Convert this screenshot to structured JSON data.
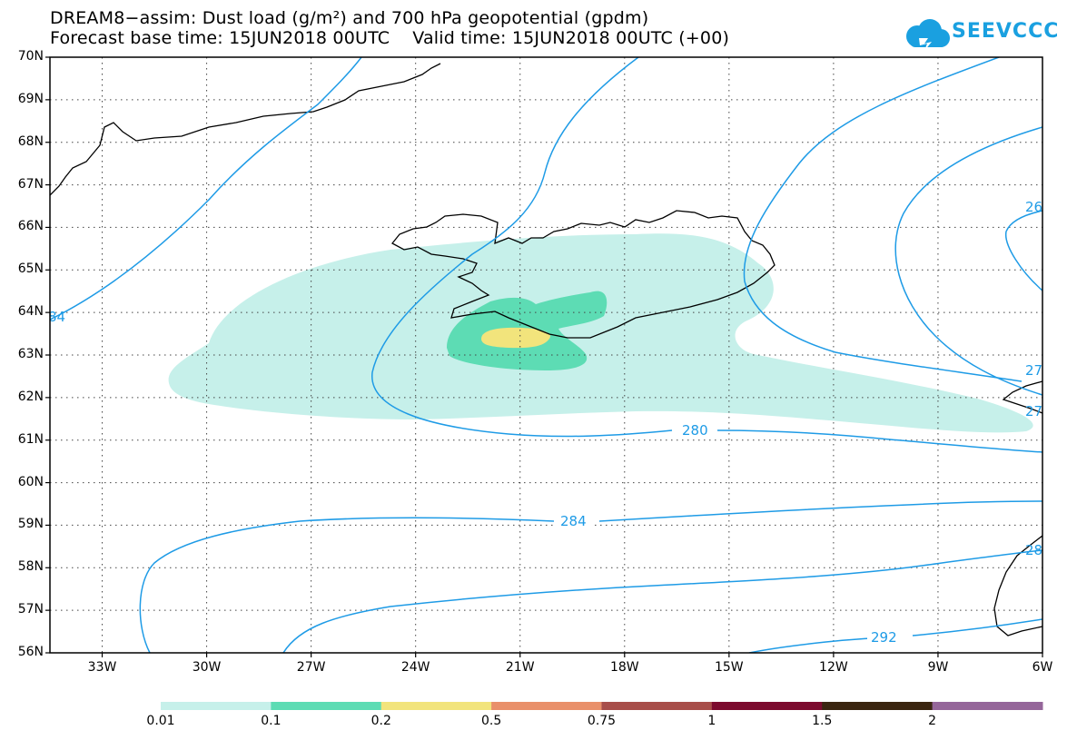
{
  "title": {
    "line1": "DREAM8−assim: Dust load (g/m²) and 700 hPa geopotential (gpdm)",
    "line2": "Forecast base time: 15JUN2018 00UTC    Valid time: 15JUN2018 00UTC (+00)"
  },
  "logo": {
    "text": "SEEVCCC",
    "color": "#1aa0e0"
  },
  "map": {
    "lat_labels": [
      "70N",
      "69N",
      "68N",
      "67N",
      "66N",
      "65N",
      "64N",
      "63N",
      "62N",
      "61N",
      "60N",
      "59N",
      "58N",
      "57N",
      "56N"
    ],
    "lon_labels": [
      "33W",
      "30W",
      "27W",
      "24W",
      "21W",
      "18W",
      "15W",
      "12W",
      "9W",
      "6W"
    ],
    "lat_range": [
      56,
      70
    ],
    "lon_range": [
      -34.5,
      -6
    ],
    "grid": "dotted",
    "contour_color": "#1e9be6",
    "contour_labels": [
      {
        "text": "280"
      },
      {
        "text": "284"
      },
      {
        "text": "292"
      },
      {
        "text": "28"
      },
      {
        "text": "27"
      },
      {
        "text": "27"
      },
      {
        "text": "26"
      },
      {
        "text": "84"
      }
    ]
  },
  "colorbar": {
    "labels": [
      "0.01",
      "0.1",
      "0.2",
      "0.5",
      "0.75",
      "1",
      "1.5",
      "2"
    ],
    "colors": [
      "#c6f0ea",
      "#5ddcb4",
      "#f2e47c",
      "#e9906a",
      "#a84e4a",
      "#7c0a2e",
      "#3a2510",
      "#95669a"
    ]
  }
}
